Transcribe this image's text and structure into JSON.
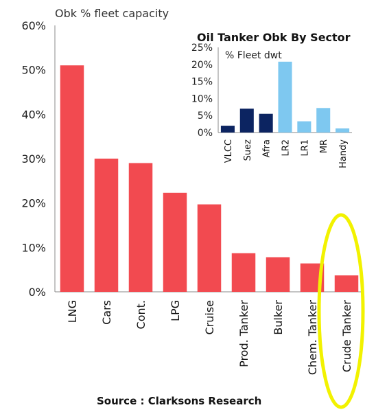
{
  "chart_data": [
    {
      "type": "bar",
      "ylabel": "Obk % fleet capacity",
      "categories": [
        "LNG",
        "Cars",
        "Cont.",
        "LPG",
        "Cruise",
        "Prod. Tanker",
        "Bulker",
        "Chem. Tanker",
        "Crude Tanker"
      ],
      "values": [
        51,
        30,
        29,
        22.3,
        19.7,
        8.7,
        7.8,
        6.4,
        3.7
      ],
      "ylim": [
        0,
        60
      ],
      "yticks": [
        "0%",
        "10%",
        "20%",
        "30%",
        "40%",
        "50%",
        "60%"
      ],
      "color": "#f24a50",
      "highlight": "Crude Tanker",
      "highlight_color": "#f2f200"
    },
    {
      "type": "bar",
      "title": "Oil Tanker Obk By Sector",
      "ylabel": "% Fleet dwt",
      "categories": [
        "VLCC",
        "Suez",
        "Afra",
        "LR2",
        "LR1",
        "MR",
        "Handy"
      ],
      "values": [
        2.0,
        7.0,
        5.5,
        20.8,
        3.3,
        7.2,
        1.2
      ],
      "ylim": [
        0,
        25
      ],
      "yticks": [
        "0%",
        "5%",
        "10%",
        "15%",
        "20%",
        "25%"
      ],
      "colors": [
        "#0c2461",
        "#0c2461",
        "#0c2461",
        "#7ec8f0",
        "#7ec8f0",
        "#7ec8f0",
        "#7ec8f0"
      ]
    }
  ],
  "source": "Source : Clarksons Research"
}
